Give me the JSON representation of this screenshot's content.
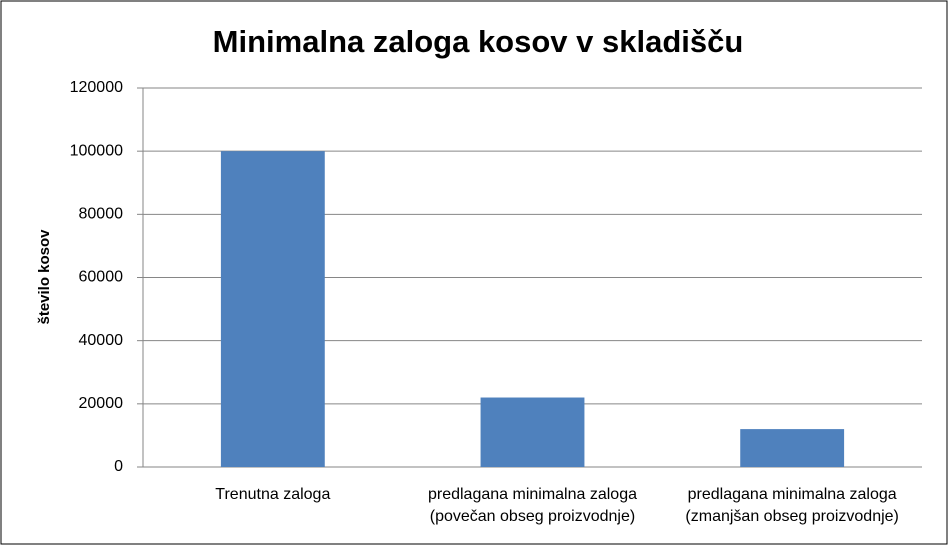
{
  "chart_data": {
    "type": "bar",
    "title": "Minimalna zaloga kosov v skladišču",
    "y_label": "število kosov",
    "categories": [
      "Trenutna zaloga",
      "predlagana minimalna zaloga (povečan obseg proizvodnje)",
      "predlagana minimalna zaloga (zmanjšan obseg proizvodnje)"
    ],
    "values": [
      100000,
      22000,
      12000
    ],
    "color": "#4f81bd",
    "ylim": [
      0,
      120000
    ],
    "yticks": [
      0,
      20000,
      40000,
      60000,
      80000,
      100000,
      120000
    ],
    "grid": true
  }
}
